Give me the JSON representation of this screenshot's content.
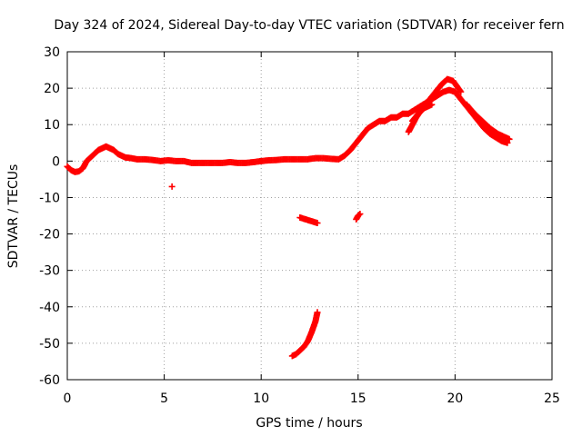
{
  "chart_data": {
    "type": "scatter",
    "title": "Day 324 of 2024, Sidereal Day-to-day VTEC variation (SDTVAR) for receiver fern",
    "xlabel": "GPS time / hours",
    "ylabel": "SDTVAR / TECUs",
    "xlim": [
      0,
      25
    ],
    "ylim": [
      -60,
      30
    ],
    "xticks": [
      0,
      5,
      10,
      15,
      20,
      25
    ],
    "yticks": [
      -60,
      -50,
      -40,
      -30,
      -20,
      -10,
      0,
      10,
      20,
      30
    ],
    "grid": true,
    "marker": "+",
    "color": "#ff0000",
    "series": [
      {
        "name": "main-trace",
        "x": [
          0.0,
          0.2,
          0.4,
          0.6,
          0.8,
          1.0,
          1.2,
          1.4,
          1.6,
          1.8,
          2.0,
          2.2,
          2.4,
          2.6,
          2.8,
          3.0,
          3.3,
          3.6,
          4.0,
          4.4,
          4.8,
          5.2,
          5.6,
          6.0,
          6.4,
          6.8,
          7.2,
          7.6,
          8.0,
          8.4,
          8.8,
          9.2,
          9.6,
          10.0,
          10.4,
          10.8,
          11.2,
          11.6,
          12.0,
          12.4,
          12.8,
          13.2,
          13.6,
          14.0,
          14.3,
          14.6,
          14.9,
          15.2,
          15.5,
          15.8,
          16.1,
          16.4,
          16.7,
          17.0,
          17.3,
          17.6,
          17.9,
          18.2,
          18.5,
          18.8,
          19.1,
          19.4,
          19.7,
          20.0,
          20.3,
          20.6,
          20.9,
          21.2,
          21.5,
          21.8,
          22.1,
          22.4,
          22.7
        ],
        "y": [
          -1.5,
          -2.5,
          -3.0,
          -2.8,
          -2.0,
          0.0,
          1.0,
          2.0,
          3.0,
          3.5,
          4.0,
          3.5,
          3.0,
          2.0,
          1.5,
          1.0,
          0.8,
          0.5,
          0.5,
          0.3,
          0.0,
          0.2,
          0.0,
          0.0,
          -0.5,
          -0.5,
          -0.5,
          -0.5,
          -0.5,
          -0.3,
          -0.5,
          -0.5,
          -0.3,
          0.0,
          0.2,
          0.3,
          0.5,
          0.5,
          0.5,
          0.5,
          0.8,
          0.8,
          0.6,
          0.5,
          1.5,
          3.0,
          5.0,
          7.0,
          9.0,
          10.0,
          11.0,
          11.0,
          12.0,
          12.0,
          13.0,
          13.0,
          14.0,
          15.0,
          16.0,
          17.0,
          18.0,
          19.0,
          19.5,
          19.0,
          17.0,
          15.0,
          13.0,
          11.0,
          9.0,
          7.5,
          6.5,
          5.5,
          5.0
        ]
      },
      {
        "name": "upper-arc",
        "x": [
          17.8,
          18.1,
          18.4,
          18.7,
          19.0,
          19.3,
          19.6,
          19.9,
          20.1,
          20.3
        ],
        "y": [
          11.0,
          13.0,
          15.0,
          17.0,
          19.0,
          21.0,
          22.5,
          22.0,
          20.5,
          19.0
        ]
      },
      {
        "name": "mid-branch",
        "x": [
          17.6,
          17.8,
          18.0,
          18.2,
          18.4,
          18.6,
          18.8
        ],
        "y": [
          8.0,
          10.0,
          12.0,
          13.5,
          14.5,
          15.0,
          15.5
        ]
      },
      {
        "name": "descending-band",
        "x": [
          20.6,
          21.0,
          21.4,
          21.8,
          22.2,
          22.6,
          22.8
        ],
        "y": [
          15.5,
          13.0,
          11.0,
          9.0,
          7.5,
          6.5,
          6.0
        ]
      },
      {
        "name": "steep-dip",
        "x": [
          11.6,
          11.8,
          12.0,
          12.2,
          12.4,
          12.6,
          12.8,
          12.9
        ],
        "y": [
          -53.5,
          -53.0,
          -52.0,
          -51.0,
          -49.5,
          -47.0,
          -44.0,
          -41.5
        ]
      },
      {
        "name": "segment-at-minus-16",
        "x": [
          12.0,
          12.3,
          12.6,
          12.9
        ],
        "y": [
          -15.5,
          -16.0,
          -16.5,
          -17.0
        ]
      },
      {
        "name": "segment-near-15h",
        "x": [
          14.9,
          15.0,
          15.1
        ],
        "y": [
          -16.0,
          -15.0,
          -14.5
        ]
      },
      {
        "name": "isolated-point",
        "x": [
          5.4
        ],
        "y": [
          -7.0
        ]
      }
    ]
  }
}
